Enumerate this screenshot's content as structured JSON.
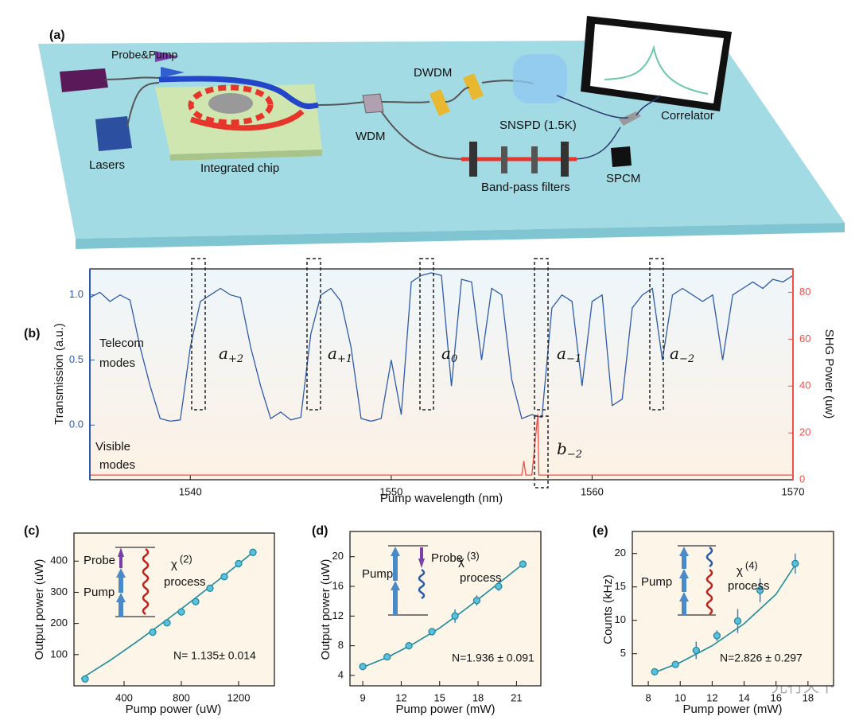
{
  "panel_a": {
    "label": "(a)",
    "probe_pump": "Probe&Pump",
    "lasers": "Lasers",
    "chip": "Integrated chip",
    "wdm": "WDM",
    "dwdm": "DWDM",
    "snspd": "SNSPD (1.5K)",
    "correlator": "Correlator",
    "filters": "Band-pass filters",
    "spcm": "SPCM"
  },
  "chart_data": [
    {
      "type": "line",
      "label": "(b)",
      "xlabel": "Pump wavelength (nm)",
      "ylabel": "Transmission (a.u.)",
      "y2label": "SHG Power (uw)",
      "xlim": [
        1535,
        1570
      ],
      "xticks": [
        1540,
        1550,
        1560,
        1570
      ],
      "ylim": [
        -0.42,
        1.2
      ],
      "yticks": [
        {
          "value": 0,
          "label": "0.0"
        },
        {
          "value": 0.5,
          "label": "0.5"
        },
        {
          "value": 1,
          "label": "1.0"
        }
      ],
      "y2lim": [
        0,
        90
      ],
      "y2ticks": [
        0,
        20,
        40,
        60,
        80
      ],
      "series": [
        {
          "color": "#2f5bab",
          "x": [
            1535,
            1535.5,
            1536,
            1536.5,
            1537,
            1537.5,
            1538,
            1538.5,
            1539,
            1539.5,
            1540,
            1540.5,
            1541,
            1541.5,
            1542,
            1542.5,
            1543,
            1543.5,
            1544,
            1544.5,
            1545,
            1545.5,
            1546,
            1546.5,
            1547,
            1547.5,
            1548,
            1548.5,
            1549,
            1549.5,
            1550,
            1550.5,
            1551,
            1551.5,
            1552,
            1552.5,
            1553,
            1553.5,
            1554,
            1554.5,
            1555,
            1555.5,
            1556,
            1556.5,
            1557,
            1557.5,
            1558,
            1558.5,
            1559,
            1559.5,
            1560,
            1560.5,
            1561,
            1561.5,
            1562,
            1562.5,
            1563,
            1563.5,
            1564,
            1564.5,
            1565,
            1565.5,
            1566,
            1566.5,
            1567,
            1567.5,
            1568,
            1568.5,
            1569,
            1569.5,
            1570
          ],
          "values": [
            0.98,
            1.02,
            0.95,
            1.0,
            0.96,
            0.6,
            0.3,
            0.05,
            0.03,
            0.04,
            0.6,
            0.95,
            1.0,
            1.05,
            1.0,
            0.98,
            0.6,
            0.3,
            0.05,
            0.1,
            0.04,
            0.06,
            0.7,
            1.0,
            1.05,
            0.95,
            0.6,
            0.05,
            0.03,
            0.05,
            0.5,
            0.08,
            1.1,
            1.15,
            1.17,
            1.15,
            0.3,
            1.12,
            1.1,
            0.5,
            1.05,
            1.0,
            0.35,
            0.05,
            0.08,
            0.06,
            0.9,
            1.0,
            0.95,
            0.3,
            0.95,
            1.0,
            0.15,
            0.2,
            0.9,
            1.0,
            1.05,
            0.5,
            1.0,
            1.05,
            1.0,
            0.95,
            1.0,
            0.5,
            1.0,
            1.05,
            1.1,
            1.05,
            1.12,
            1.1,
            1.15
          ]
        },
        {
          "color": "#f0504a",
          "axis": "y2",
          "x": [
            1535,
            1556.5,
            1556.6,
            1556.7,
            1557.0,
            1557.3,
            1557.35,
            1557.5,
            1570
          ],
          "values": [
            2,
            2,
            8,
            2,
            2,
            28,
            2,
            2,
            2
          ]
        }
      ],
      "annotations": {
        "telecom": [
          "Telecom",
          "modes"
        ],
        "visible": [
          "Visible",
          "modes"
        ],
        "modes": [
          {
            "symbol": "a",
            "sub": "+2"
          },
          {
            "symbol": "a",
            "sub": "+1"
          },
          {
            "symbol": "a",
            "sub": "0"
          },
          {
            "symbol": "a",
            "sub": "−1"
          },
          {
            "symbol": "a",
            "sub": "−2"
          },
          {
            "symbol": "b",
            "sub": "−2"
          }
        ]
      }
    },
    {
      "type": "scatter",
      "label": "(c)",
      "xlabel": "Pump power (uW)",
      "ylabel": "Output power (uW)",
      "xlim": [
        50,
        1450
      ],
      "xticks": [
        400,
        800,
        1200
      ],
      "ylim": [
        0,
        490
      ],
      "yticks": [
        100,
        200,
        300,
        400
      ],
      "color": "#1e8a9a",
      "marker_color": "#5bc0e0",
      "x": [
        128,
        600,
        700,
        800,
        900,
        1000,
        1100,
        1200,
        1300
      ],
      "values": [
        22,
        172,
        202,
        237,
        270,
        313,
        350,
        392,
        428
      ],
      "fit": {
        "x": [
          100,
          300,
          500,
          700,
          900,
          1100,
          1300
        ],
        "values": [
          23,
          81,
          145,
          212,
          282,
          354,
          428
        ]
      },
      "annotations": {
        "probe": "Probe",
        "pump": "Pump",
        "chi": "χ",
        "order": "(2)",
        "process": "process",
        "fit_result": "N= 1.135± 0.014"
      }
    },
    {
      "type": "scatter",
      "label": "(d)",
      "xlabel": "Pump power (mW)",
      "ylabel": "Output power (uW)",
      "xlim": [
        8,
        22.9
      ],
      "xticks": [
        9,
        12,
        15,
        18,
        21
      ],
      "ylim": [
        2.6,
        23.4
      ],
      "yticks": [
        4,
        8,
        12,
        16,
        20
      ],
      "color": "#1e8a9a",
      "marker_color": "#5bc0e0",
      "x": [
        9,
        10.9,
        12.6,
        14.4,
        16.2,
        17.9,
        19.6,
        21.5
      ],
      "values": [
        5.2,
        6.5,
        8.0,
        9.9,
        12,
        14.1,
        16,
        19
      ],
      "errors": [
        0.3,
        0.4,
        0.5,
        0.4,
        0.9,
        0.7,
        0.6,
        0.3
      ],
      "fit": {
        "x": [
          9,
          11,
          13,
          15,
          17,
          19,
          21.5
        ],
        "values": [
          5.1,
          6.5,
          8.3,
          10.4,
          12.9,
          15.6,
          19
        ]
      },
      "annotations": {
        "probe": "Probe",
        "pump": "Pump",
        "chi": "χ",
        "order": "(3)",
        "process": "process",
        "fit_result": "N=1.936 ± 0.091"
      }
    },
    {
      "type": "scatter",
      "label": "(e)",
      "xlabel": "Pump power (mW)",
      "ylabel": "Counts (kHz)",
      "xlim": [
        7,
        19.6
      ],
      "xticks": [
        8,
        10,
        12,
        14,
        16,
        18
      ],
      "ylim": [
        0.2,
        23.3
      ],
      "yticks": [
        5,
        10,
        15,
        20
      ],
      "color": "#1e8a9a",
      "marker_color": "#5bc0e0",
      "x": [
        8.4,
        9.7,
        11,
        12.3,
        13.6,
        15,
        17.2
      ],
      "values": [
        2.3,
        3.4,
        5.5,
        7.7,
        9.9,
        14.5,
        18.5
      ],
      "errors": [
        0.2,
        0.4,
        1.3,
        0.8,
        1.8,
        1.8,
        1.5
      ],
      "fit": {
        "x": [
          8.4,
          10,
          12,
          14,
          16,
          17.2
        ],
        "values": [
          2.2,
          3.7,
          6.2,
          9.5,
          13.9,
          18.3
        ]
      },
      "annotations": {
        "pump": "Pump",
        "chi": "χ",
        "order": "(4)",
        "process": "process",
        "fit_result": "N=2.826 ± 0.297"
      }
    }
  ],
  "watermark": "光行天下"
}
